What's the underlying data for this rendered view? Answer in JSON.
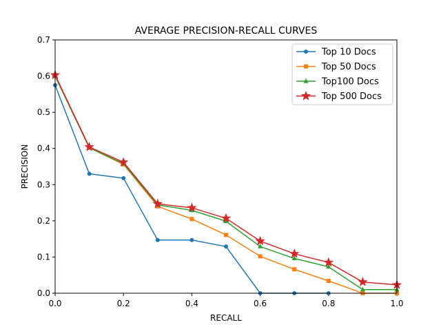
{
  "chart_data": {
    "type": "line",
    "title": "AVERAGE PRECISION-RECALL CURVES",
    "xlabel": "RECALL",
    "ylabel": "PRECISION",
    "xlim": [
      0.0,
      1.0
    ],
    "ylim": [
      0.0,
      0.7
    ],
    "x_ticks": [
      "0.0",
      "0.2",
      "0.4",
      "0.6",
      "0.8",
      "1.0"
    ],
    "y_ticks": [
      "0.0",
      "0.1",
      "0.2",
      "0.3",
      "0.4",
      "0.5",
      "0.6",
      "0.7"
    ],
    "grid": false,
    "legend_position": "top-right",
    "x": [
      0.0,
      0.1,
      0.2,
      0.3,
      0.4,
      0.5,
      0.6,
      0.7,
      0.8,
      0.9,
      1.0
    ],
    "series": [
      {
        "name": "Top 10 Docs",
        "color": "#1f77b4",
        "marker": "circle",
        "values": [
          0.575,
          0.33,
          0.318,
          0.147,
          0.147,
          0.129,
          0.0,
          0.0,
          0.0,
          null,
          null
        ]
      },
      {
        "name": "Top 50 Docs",
        "color": "#ff7f0e",
        "marker": "square",
        "values": [
          0.6,
          0.402,
          0.356,
          0.24,
          0.205,
          0.161,
          0.102,
          0.066,
          0.034,
          0.0,
          0.0
        ]
      },
      {
        "name": "Top100 Docs",
        "color": "#2ca02c",
        "marker": "triangle",
        "values": [
          0.6,
          0.402,
          0.358,
          0.244,
          0.229,
          0.199,
          0.129,
          0.096,
          0.073,
          0.01,
          0.01
        ]
      },
      {
        "name": "Top 500 Docs",
        "color": "#d62728",
        "marker": "star",
        "values": [
          0.603,
          0.404,
          0.362,
          0.247,
          0.236,
          0.207,
          0.144,
          0.109,
          0.085,
          0.031,
          0.023
        ]
      }
    ]
  }
}
